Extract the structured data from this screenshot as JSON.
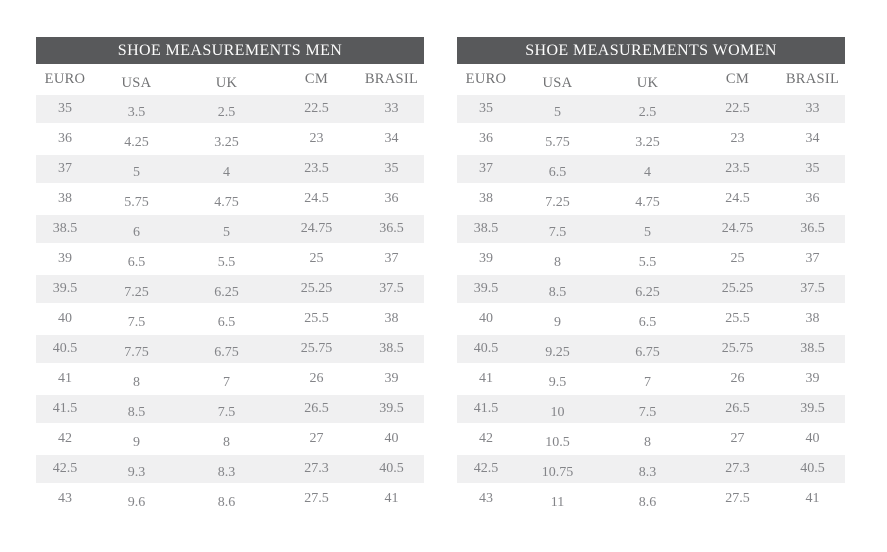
{
  "colors": {
    "header_bg": "#58595b",
    "header_text": "#fdfdfd",
    "label_text": "#717274",
    "cell_text": "#838488",
    "stripe_bg": "#f0f0f1",
    "page_bg": "#ffffff"
  },
  "tables": [
    {
      "id": "men",
      "title": "SHOE MEASUREMENTS MEN",
      "columns": [
        "EURO",
        "USA",
        "UK",
        "CM",
        "BRASIL"
      ],
      "rows": [
        [
          "35",
          "3.5",
          "2.5",
          "22.5",
          "33"
        ],
        [
          "36",
          "4.25",
          "3.25",
          "23",
          "34"
        ],
        [
          "37",
          "5",
          "4",
          "23.5",
          "35"
        ],
        [
          "38",
          "5.75",
          "4.75",
          "24.5",
          "36"
        ],
        [
          "38.5",
          "6",
          "5",
          "24.75",
          "36.5"
        ],
        [
          "39",
          "6.5",
          "5.5",
          "25",
          "37"
        ],
        [
          "39.5",
          "7.25",
          "6.25",
          "25.25",
          "37.5"
        ],
        [
          "40",
          "7.5",
          "6.5",
          "25.5",
          "38"
        ],
        [
          "40.5",
          "7.75",
          "6.75",
          "25.75",
          "38.5"
        ],
        [
          "41",
          "8",
          "7",
          "26",
          "39"
        ],
        [
          "41.5",
          "8.5",
          "7.5",
          "26.5",
          "39.5"
        ],
        [
          "42",
          "9",
          "8",
          "27",
          "40"
        ],
        [
          "42.5",
          "9.3",
          "8.3",
          "27.3",
          "40.5"
        ],
        [
          "43",
          "9.6",
          "8.6",
          "27.5",
          "41"
        ]
      ]
    },
    {
      "id": "women",
      "title": "SHOE MEASUREMENTS WOMEN",
      "columns": [
        "EURO",
        "USA",
        "UK",
        "CM",
        "BRASIL"
      ],
      "rows": [
        [
          "35",
          "5",
          "2.5",
          "22.5",
          "33"
        ],
        [
          "36",
          "5.75",
          "3.25",
          "23",
          "34"
        ],
        [
          "37",
          "6.5",
          "4",
          "23.5",
          "35"
        ],
        [
          "38",
          "7.25",
          "4.75",
          "24.5",
          "36"
        ],
        [
          "38.5",
          "7.5",
          "5",
          "24.75",
          "36.5"
        ],
        [
          "39",
          "8",
          "5.5",
          "25",
          "37"
        ],
        [
          "39.5",
          "8.5",
          "6.25",
          "25.25",
          "37.5"
        ],
        [
          "40",
          "9",
          "6.5",
          "25.5",
          "38"
        ],
        [
          "40.5",
          "9.25",
          "6.75",
          "25.75",
          "38.5"
        ],
        [
          "41",
          "9.5",
          "7",
          "26",
          "39"
        ],
        [
          "41.5",
          "10",
          "7.5",
          "26.5",
          "39.5"
        ],
        [
          "42",
          "10.5",
          "8",
          "27",
          "40"
        ],
        [
          "42.5",
          "10.75",
          "8.3",
          "27.3",
          "40.5"
        ],
        [
          "43",
          "11",
          "8.6",
          "27.5",
          "41"
        ]
      ]
    }
  ]
}
